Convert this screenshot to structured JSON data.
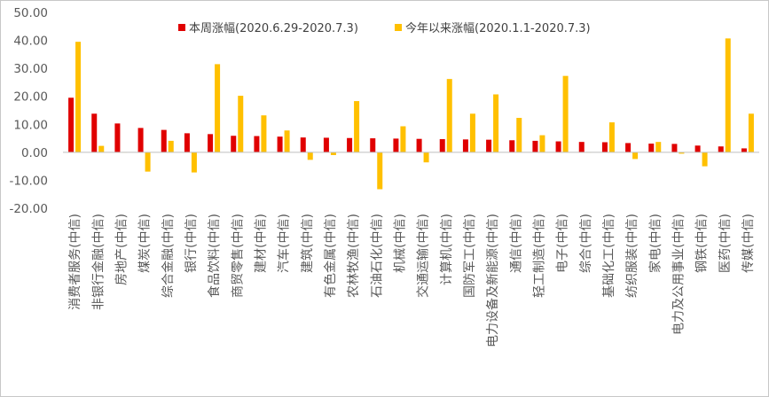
{
  "chart_data": {
    "type": "bar",
    "title": "",
    "xlabel": "",
    "ylabel": "",
    "ylim": [
      -20,
      50
    ],
    "yticks": [
      "50.00",
      "40.00",
      "30.00",
      "20.00",
      "10.00",
      "0.00",
      "-10.00",
      "-20.00"
    ],
    "grid": false,
    "legend_position": "top",
    "categories": [
      "消费者服务(中信)",
      "非银行金融(中信)",
      "房地产(中信)",
      "煤炭(中信)",
      "综合金融(中信)",
      "银行(中信)",
      "食品饮料(中信)",
      "商贸零售(中信)",
      "建材(中信)",
      "汽车(中信)",
      "建筑(中信)",
      "有色金属(中信)",
      "农林牧渔(中信)",
      "石油石化(中信)",
      "机械(中信)",
      "交通运输(中信)",
      "计算机(中信)",
      "国防军工(中信)",
      "电力设备及新能源(中信)",
      "通信(中信)",
      "轻工制造(中信)",
      "电子(中信)",
      "综合(中信)",
      "基础化工(中信)",
      "纺织服装(中信)",
      "家电(中信)",
      "电力及公用事业(中信)",
      "钢铁(中信)",
      "医药(中信)",
      "传媒(中信)"
    ],
    "series": [
      {
        "name": "本周涨幅(2020.6.29-2020.7.3)",
        "color": "#e00000",
        "values": [
          19.5,
          13.8,
          10.3,
          8.7,
          8.0,
          6.8,
          6.5,
          5.9,
          5.8,
          5.6,
          5.3,
          5.2,
          5.1,
          5.0,
          4.9,
          4.8,
          4.7,
          4.6,
          4.5,
          4.3,
          4.1,
          3.9,
          3.7,
          3.6,
          3.3,
          3.1,
          3.0,
          2.4,
          2.1,
          1.4
        ]
      },
      {
        "name": "今年以来涨幅(2020.1.1-2020.7.3)",
        "color": "#ffc000",
        "values": [
          39.5,
          2.3,
          0.1,
          -6.9,
          4.1,
          -7.2,
          31.5,
          20.2,
          13.2,
          7.8,
          -2.7,
          -1.0,
          18.3,
          -13.2,
          9.3,
          -3.6,
          26.2,
          13.8,
          20.7,
          12.3,
          6.1,
          27.3,
          0.1,
          10.7,
          -2.4,
          3.7,
          -0.5,
          -5.0,
          40.7,
          13.8
        ]
      }
    ]
  }
}
